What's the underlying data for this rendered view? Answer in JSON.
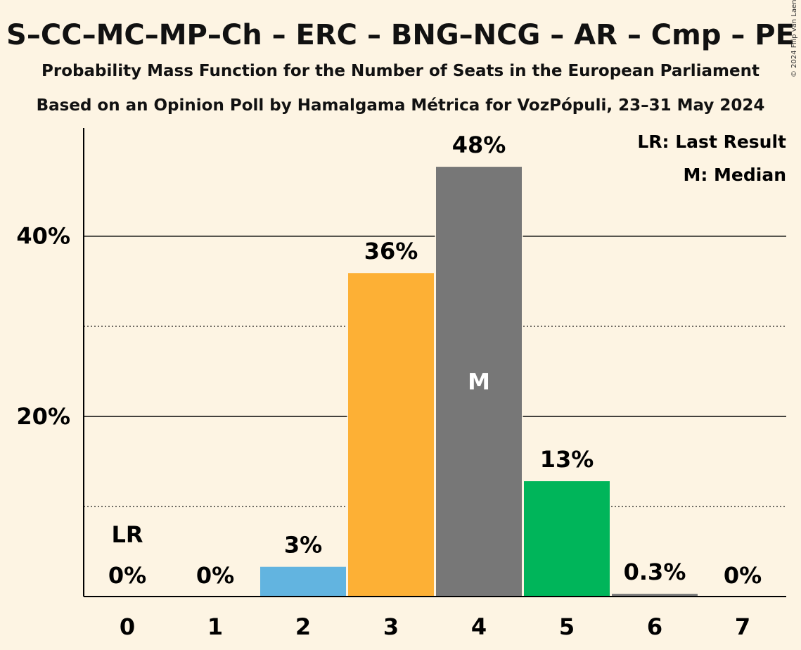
{
  "title": "S–CC–MC–MP–Ch – ERC – BNG–NCG – AR – Cmp – PE",
  "subtitle1": "Probability Mass Function for the Number of Seats in the European Parliament",
  "subtitle2": "Based on an Opinion Poll by Hamalgama Métrica for VozPópuli, 23–31 May 2024",
  "copyright": "© 2024 Filip van Laenen",
  "legend": {
    "last_result": "LR: Last Result",
    "median": "M: Median"
  },
  "chart_data": {
    "type": "bar",
    "categories": [
      "0",
      "1",
      "2",
      "3",
      "4",
      "5",
      "6",
      "7"
    ],
    "values": [
      0,
      0,
      3.3,
      35.9,
      47.7,
      12.8,
      0.3,
      0
    ],
    "value_labels": [
      "0%",
      "0%",
      "3%",
      "36%",
      "48%",
      "13%",
      "0.3%",
      "0%"
    ],
    "colors": [
      "#62b4e0",
      "#62b4e0",
      "#62b4e0",
      "#fdb035",
      "#777777",
      "#00b55a",
      "#777777",
      "#777777"
    ],
    "ylim": [
      0,
      52
    ],
    "yticks": [
      {
        "value": 20,
        "label": "20%"
      },
      {
        "value": 40,
        "label": "40%"
      }
    ],
    "minor_gridlines": [
      10,
      30
    ],
    "last_result_index": 0,
    "last_result_marker": "LR",
    "median_index": 4,
    "median_marker": "M",
    "grid": true,
    "legend_position": "top-right"
  }
}
